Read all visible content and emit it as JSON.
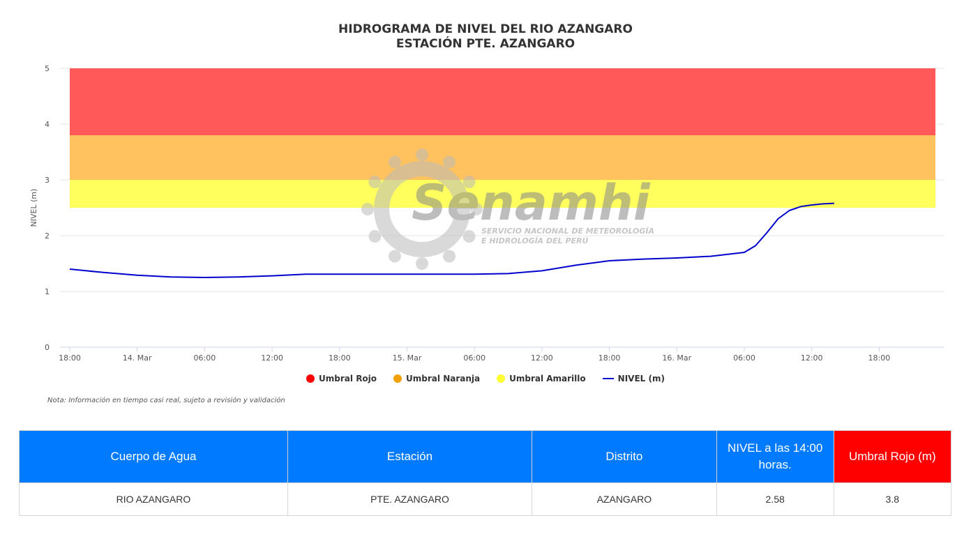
{
  "chart_data": {
    "type": "line",
    "title": "HIDROGRAMA DE NIVEL DEL RIO AZANGARO",
    "subtitle": "ESTACIÓN PTE. AZANGARO",
    "ylabel": "NIVEL (m)",
    "xlabel": "",
    "ylim": [
      0,
      5
    ],
    "yticks": [
      "0",
      "1",
      "2",
      "3",
      "4",
      "5"
    ],
    "xticks": [
      "18:00",
      "14. Mar",
      "06:00",
      "12:00",
      "18:00",
      "15. Mar",
      "06:00",
      "12:00",
      "18:00",
      "16. Mar",
      "06:00",
      "12:00",
      "18:00"
    ],
    "grid": true,
    "legend_position": "bottom",
    "bands": [
      {
        "name": "Umbral Rojo",
        "from": 3.8,
        "to": 5.0,
        "color": "#ff5050"
      },
      {
        "name": "Umbral Naranja",
        "from": 3.0,
        "to": 3.8,
        "color": "#ffbf55"
      },
      {
        "name": "Umbral Amarillo",
        "from": 2.5,
        "to": 3.0,
        "color": "#ffff55"
      }
    ],
    "series": [
      {
        "name": "NIVEL (m)",
        "color": "#0000cc",
        "x": [
          "2025-03-13 18:00",
          "2025-03-13 21:00",
          "2025-03-14 00:00",
          "2025-03-14 03:00",
          "2025-03-14 06:00",
          "2025-03-14 09:00",
          "2025-03-14 12:00",
          "2025-03-14 15:00",
          "2025-03-14 18:00",
          "2025-03-14 21:00",
          "2025-03-15 00:00",
          "2025-03-15 03:00",
          "2025-03-15 06:00",
          "2025-03-15 09:00",
          "2025-03-15 12:00",
          "2025-03-15 15:00",
          "2025-03-15 18:00",
          "2025-03-15 21:00",
          "2025-03-16 00:00",
          "2025-03-16 03:00",
          "2025-03-16 06:00",
          "2025-03-16 07:00",
          "2025-03-16 08:00",
          "2025-03-16 09:00",
          "2025-03-16 10:00",
          "2025-03-16 11:00",
          "2025-03-16 12:00",
          "2025-03-16 13:00",
          "2025-03-16 14:00"
        ],
        "values": [
          1.4,
          1.34,
          1.29,
          1.26,
          1.25,
          1.26,
          1.28,
          1.31,
          1.31,
          1.31,
          1.31,
          1.31,
          1.31,
          1.32,
          1.37,
          1.47,
          1.55,
          1.58,
          1.6,
          1.63,
          1.7,
          1.82,
          2.05,
          2.3,
          2.45,
          2.52,
          2.55,
          2.57,
          2.58
        ]
      }
    ]
  },
  "legend": {
    "rojo": "Umbral Rojo",
    "naranja": "Umbral Naranja",
    "amarillo": "Umbral Amarillo",
    "nivel": "NIVEL (m)"
  },
  "watermark": {
    "name": "Senamhi",
    "line1": "SERVICIO NACIONAL DE METEOROLOGÍA",
    "line2": "E HIDROLOGÍA DEL PERÚ"
  },
  "note": "Nota: Información en tiempo casi real, sujeto a revisión y validación",
  "table": {
    "headers": [
      "Cuerpo de Agua",
      "Estación",
      "Distrito",
      "NIVEL a las 14:00 horas.",
      "Umbral Rojo (m)"
    ],
    "row": [
      "RIO AZANGARO",
      "PTE. AZANGARO",
      "AZANGARO",
      "2.58",
      "3.8"
    ],
    "header_color": "#007bff",
    "alert_color": "#ff0000"
  }
}
